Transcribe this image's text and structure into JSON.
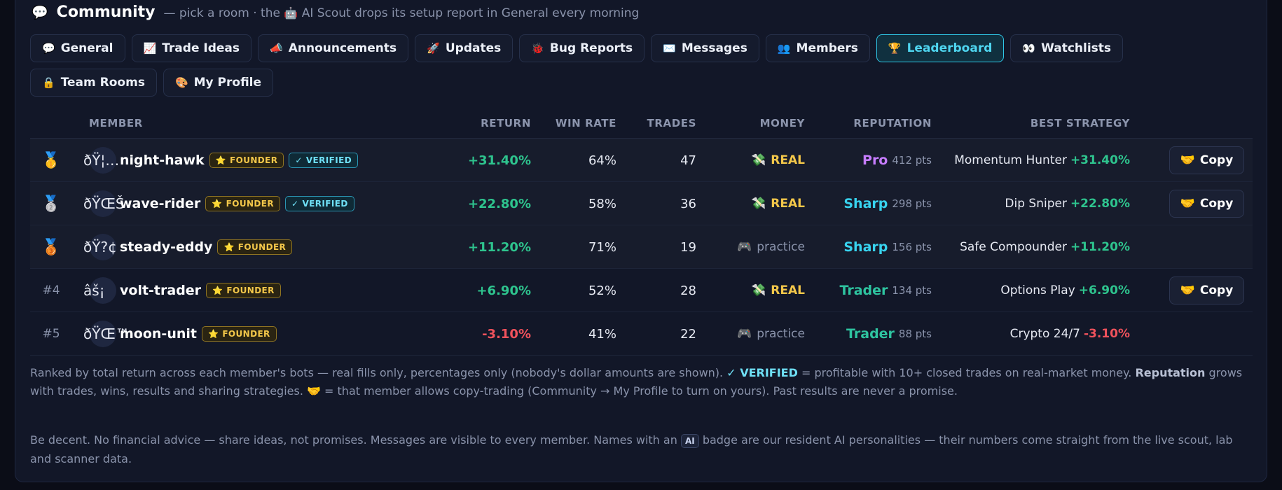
{
  "header": {
    "icon": "💬",
    "title": "Community",
    "subtitle_pre": "— pick a room · the",
    "subtitle_icon": "🤖",
    "subtitle_post": "AI Scout drops its setup report in General every morning"
  },
  "tabs": [
    {
      "icon": "💬",
      "label": "General",
      "active": false
    },
    {
      "icon": "📈",
      "label": "Trade Ideas",
      "active": false
    },
    {
      "icon": "📣",
      "label": "Announcements",
      "active": false
    },
    {
      "icon": "🚀",
      "label": "Updates",
      "active": false
    },
    {
      "icon": "🐞",
      "label": "Bug Reports",
      "active": false
    },
    {
      "icon": "✉️",
      "label": "Messages",
      "active": false
    },
    {
      "icon": "👥",
      "label": "Members",
      "active": false
    },
    {
      "icon": "🏆",
      "label": "Leaderboard",
      "active": true
    },
    {
      "icon": "👀",
      "label": "Watchlists",
      "active": false
    },
    {
      "icon": "🔒",
      "label": "Team Rooms",
      "active": false
    },
    {
      "icon": "🎨",
      "label": "My Profile",
      "active": false
    }
  ],
  "columns": {
    "member": "MEMBER",
    "return": "RETURN",
    "win_rate": "WIN RATE",
    "trades": "TRADES",
    "money": "MONEY",
    "reputation": "REPUTATION",
    "best_strategy": "BEST STRATEGY"
  },
  "copy_label": "Copy",
  "copy_icon": "🤝",
  "rows": [
    {
      "rank": "🥇",
      "avatar": "ðŸ¦…",
      "name": "night-hawk",
      "founder": "FOUNDER",
      "verified": "VERIFIED",
      "return": "+31.40%",
      "win_rate": "64%",
      "trades": "47",
      "money_icon": "💸",
      "money": "REAL",
      "tier": "Pro",
      "pts": "412 pts",
      "strategy": "Momentum Hunter",
      "strategy_return": "+31.40%",
      "copy": true
    },
    {
      "rank": "🥈",
      "avatar": "ðŸŒŠ",
      "name": "wave-rider",
      "founder": "FOUNDER",
      "verified": "VERIFIED",
      "return": "+22.80%",
      "win_rate": "58%",
      "trades": "36",
      "money_icon": "💸",
      "money": "REAL",
      "tier": "Sharp",
      "pts": "298 pts",
      "strategy": "Dip Sniper",
      "strategy_return": "+22.80%",
      "copy": true
    },
    {
      "rank": "🥉",
      "avatar": "ðŸ?¢",
      "name": "steady-eddy",
      "founder": "FOUNDER",
      "verified": "",
      "return": "+11.20%",
      "win_rate": "71%",
      "trades": "19",
      "money_icon": "🎮",
      "money": "practice",
      "tier": "Sharp",
      "pts": "156 pts",
      "strategy": "Safe Compounder",
      "strategy_return": "+11.20%",
      "copy": false
    },
    {
      "rank": "#4",
      "avatar": "âš¡",
      "name": "volt-trader",
      "founder": "FOUNDER",
      "verified": "",
      "return": "+6.90%",
      "win_rate": "52%",
      "trades": "28",
      "money_icon": "💸",
      "money": "REAL",
      "tier": "Trader",
      "pts": "134 pts",
      "strategy": "Options Play",
      "strategy_return": "+6.90%",
      "copy": true
    },
    {
      "rank": "#5",
      "avatar": "ðŸŒ™",
      "name": "moon-unit",
      "founder": "FOUNDER",
      "verified": "",
      "return": "-3.10%",
      "win_rate": "41%",
      "trades": "22",
      "money_icon": "🎮",
      "money": "practice",
      "tier": "Trader",
      "pts": "88 pts",
      "strategy": "Crypto 24/7",
      "strategy_return": "-3.10%",
      "copy": false
    }
  ],
  "tier_colors": {
    "Pro": "#c77dff",
    "Sharp": "#38d3ef",
    "Trader": "#2ec4a0"
  },
  "footnote": {
    "part1": "Ranked by total return across each member's bots — real fills only, percentages only (nobody's dollar amounts are shown).",
    "verified_label": "✓ VERIFIED",
    "part2": "= profitable with 10+ closed trades on real-market money.",
    "reputation_word": "Reputation",
    "part3": "grows with trades, wins, results and sharing strategies.",
    "copy_icon": "🤝",
    "part4": "= that member allows copy-trading (Community → My Profile to turn on yours). Past results are never a promise."
  },
  "rules": {
    "part1": "Be decent. No financial advice — share ideas, not promises. Messages are visible to every member. Names with an",
    "ai_badge": "AI",
    "part2": "badge are our resident AI personalities — their numbers come straight from the live scout, lab and scanner data."
  }
}
